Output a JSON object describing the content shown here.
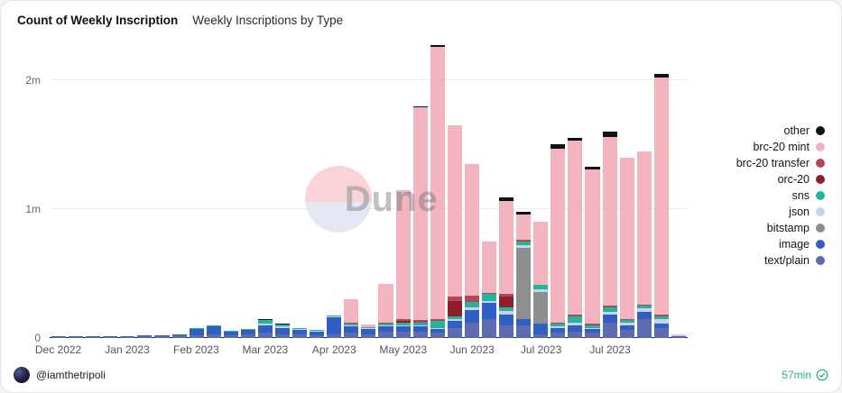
{
  "watermark": "Dune",
  "footer": {
    "author": "@iamthetripoli",
    "refresh": "57min"
  },
  "colors": {
    "accent_green": "#26b570",
    "baseline": "#1f1f1f",
    "gridline": "#ececec"
  },
  "chart_data": {
    "type": "bar",
    "stacked": true,
    "title": "Count of Weekly Inscription",
    "subtitle": "Weekly Inscriptions by Type",
    "unit": "millions",
    "ylim": [
      0,
      2.3
    ],
    "grid": "horizontal",
    "legend_position": "right",
    "y_ticks": [
      {
        "value": 0,
        "label": "0"
      },
      {
        "value": 1,
        "label": "1m"
      },
      {
        "value": 2,
        "label": "2m"
      }
    ],
    "x_ticks": {
      "positions": [
        0,
        4,
        8,
        12,
        16,
        20,
        24,
        28,
        32
      ],
      "labels": [
        "Dec 2022",
        "Jan 2023",
        "Feb 2023",
        "Mar 2023",
        "Apr 2023",
        "May 2023",
        "Jun 2023",
        "Jul 2023",
        "Jul 2023"
      ]
    },
    "categories": [
      "2022-12-04",
      "2022-12-11",
      "2022-12-18",
      "2022-12-25",
      "2023-01-01",
      "2023-01-08",
      "2023-01-15",
      "2023-01-22",
      "2023-01-29",
      "2023-02-05",
      "2023-02-12",
      "2023-02-19",
      "2023-02-26",
      "2023-03-05",
      "2023-03-12",
      "2023-03-19",
      "2023-03-26",
      "2023-04-02",
      "2023-04-09",
      "2023-04-16",
      "2023-04-23",
      "2023-04-30",
      "2023-05-07",
      "2023-05-14",
      "2023-05-21",
      "2023-05-28",
      "2023-06-04",
      "2023-06-11",
      "2023-06-18",
      "2023-06-25",
      "2023-07-02",
      "2023-07-09",
      "2023-07-16",
      "2023-07-23",
      "2023-07-30",
      "2023-08-06",
      "2023-08-13"
    ],
    "series": [
      {
        "name": "text/plain",
        "color": "#5c6cae",
        "values": [
          0.004,
          0.005,
          0.006,
          0.008,
          0.01,
          0.012,
          0.015,
          0.02,
          0.02,
          0.03,
          0.02,
          0.025,
          0.04,
          0.03,
          0.025,
          0.02,
          0.03,
          0.04,
          0.03,
          0.05,
          0.05,
          0.05,
          0.04,
          0.08,
          0.12,
          0.15,
          0.1,
          0.1,
          0.03,
          0.04,
          0.05,
          0.04,
          0.12,
          0.06,
          0.15,
          0.08,
          0.005
        ]
      },
      {
        "name": "image",
        "color": "#2f5ec4",
        "values": [
          0.002,
          0.003,
          0.004,
          0.004,
          0.005,
          0.006,
          0.008,
          0.01,
          0.05,
          0.06,
          0.03,
          0.035,
          0.06,
          0.05,
          0.035,
          0.03,
          0.13,
          0.05,
          0.04,
          0.04,
          0.04,
          0.04,
          0.03,
          0.05,
          0.1,
          0.12,
          0.08,
          0.05,
          0.08,
          0.04,
          0.05,
          0.03,
          0.06,
          0.04,
          0.05,
          0.03,
          0.003
        ]
      },
      {
        "name": "bitstamp",
        "color": "#8e8e8e",
        "values": [
          0,
          0,
          0,
          0,
          0,
          0,
          0,
          0,
          0,
          0,
          0,
          0,
          0,
          0,
          0,
          0,
          0,
          0,
          0,
          0,
          0,
          0,
          0,
          0,
          0,
          0,
          0,
          0.55,
          0.25,
          0,
          0,
          0,
          0,
          0,
          0,
          0,
          0
        ]
      },
      {
        "name": "json",
        "color": "#c6d2f4",
        "values": [
          0,
          0,
          0,
          0,
          0,
          0,
          0,
          0,
          0,
          0,
          0,
          0,
          0.01,
          0.008,
          0.005,
          0.005,
          0.005,
          0.01,
          0.005,
          0.01,
          0.01,
          0.01,
          0.01,
          0.02,
          0.02,
          0.02,
          0.03,
          0.02,
          0.02,
          0.01,
          0.02,
          0.01,
          0.02,
          0.02,
          0.03,
          0.04,
          0.002
        ]
      },
      {
        "name": "sns",
        "color": "#23b598",
        "values": [
          0,
          0,
          0,
          0,
          0,
          0,
          0,
          0,
          0.002,
          0.003,
          0.002,
          0.002,
          0.03,
          0.02,
          0.01,
          0.008,
          0.008,
          0.015,
          0.01,
          0.015,
          0.02,
          0.02,
          0.05,
          0.02,
          0.04,
          0.05,
          0.03,
          0.03,
          0.03,
          0.02,
          0.05,
          0.02,
          0.04,
          0.02,
          0.02,
          0.02,
          0
        ]
      },
      {
        "name": "orc-20",
        "color": "#8f1d2c",
        "values": [
          0,
          0,
          0,
          0,
          0,
          0,
          0,
          0,
          0,
          0,
          0,
          0,
          0,
          0,
          0,
          0,
          0,
          0,
          0,
          0,
          0.01,
          0,
          0,
          0.12,
          0,
          0,
          0.08,
          0,
          0,
          0,
          0,
          0,
          0,
          0,
          0,
          0,
          0
        ]
      },
      {
        "name": "brc-20 transfer",
        "color": "#b2475a",
        "values": [
          0,
          0,
          0,
          0,
          0,
          0,
          0,
          0,
          0,
          0,
          0,
          0,
          0,
          0,
          0,
          0,
          0,
          0.005,
          0,
          0.005,
          0.02,
          0.02,
          0.02,
          0.03,
          0.05,
          0.01,
          0.02,
          0.01,
          0,
          0.01,
          0.01,
          0.01,
          0.01,
          0.01,
          0.01,
          0.01,
          0
        ]
      },
      {
        "name": "brc-20 mint",
        "color": "#f3b4bf",
        "values": [
          0,
          0,
          0,
          0,
          0,
          0,
          0,
          0,
          0,
          0,
          0,
          0,
          0,
          0,
          0,
          0,
          0,
          0.18,
          0.02,
          0.3,
          1.0,
          1.65,
          2.11,
          1.33,
          1.02,
          0.4,
          0.72,
          0.2,
          0.49,
          1.35,
          1.35,
          1.2,
          1.31,
          1.25,
          1.19,
          1.84,
          0.01
        ]
      },
      {
        "name": "other",
        "color": "#111111",
        "values": [
          0,
          0,
          0,
          0,
          0,
          0,
          0,
          0,
          0,
          0,
          0,
          0,
          0.003,
          0.002,
          0,
          0,
          0,
          0,
          0,
          0,
          0,
          0.01,
          0.01,
          0,
          0,
          0,
          0.03,
          0.02,
          0,
          0.03,
          0.02,
          0.02,
          0.04,
          0,
          0,
          0.03,
          0
        ]
      }
    ]
  }
}
